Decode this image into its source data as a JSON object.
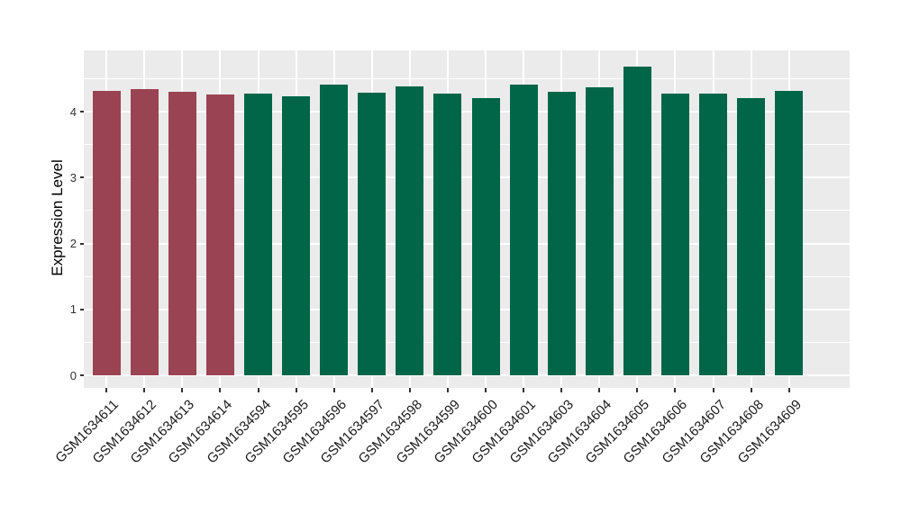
{
  "chart_data": {
    "type": "bar",
    "title": "",
    "xlabel": "",
    "ylabel": "Expression Level",
    "categories": [
      "GSM1634611",
      "GSM1634612",
      "GSM1634613",
      "GSM1634614",
      "GSM1634594",
      "GSM1634595",
      "GSM1634596",
      "GSM1634597",
      "GSM1634598",
      "GSM1634599",
      "GSM1634600",
      "GSM1634601",
      "GSM1634603",
      "GSM1634604",
      "GSM1634605",
      "GSM1634606",
      "GSM1634607",
      "GSM1634608",
      "GSM1634609"
    ],
    "values": [
      4.32,
      4.34,
      4.3,
      4.26,
      4.28,
      4.24,
      4.41,
      4.29,
      4.38,
      4.28,
      4.21,
      4.41,
      4.3,
      4.37,
      4.68,
      4.27,
      4.28,
      4.21,
      4.31
    ],
    "bar_colors": [
      "#9A4352",
      "#9A4352",
      "#9A4352",
      "#9A4352",
      "#016648",
      "#016648",
      "#016648",
      "#016648",
      "#016648",
      "#016648",
      "#016648",
      "#016648",
      "#016648",
      "#016648",
      "#016648",
      "#016648",
      "#016648",
      "#016648",
      "#016648"
    ],
    "group_colors": {
      "highlighted": "#9A4352",
      "default": "#016648"
    },
    "y_ticks": [
      0,
      1,
      2,
      3,
      4
    ],
    "y_minor_ticks": [
      0.5,
      1.5,
      2.5,
      3.5,
      4.5
    ],
    "ylim": [
      -0.19,
      4.93
    ],
    "grid": true,
    "legend_position": "none",
    "style": {
      "panel_background": "#EBEBEB",
      "grid_color": "#FFFFFF",
      "tick_mark_color": "#333333",
      "axis_text_color": "#333333",
      "axis_title_color": "#000000"
    }
  }
}
